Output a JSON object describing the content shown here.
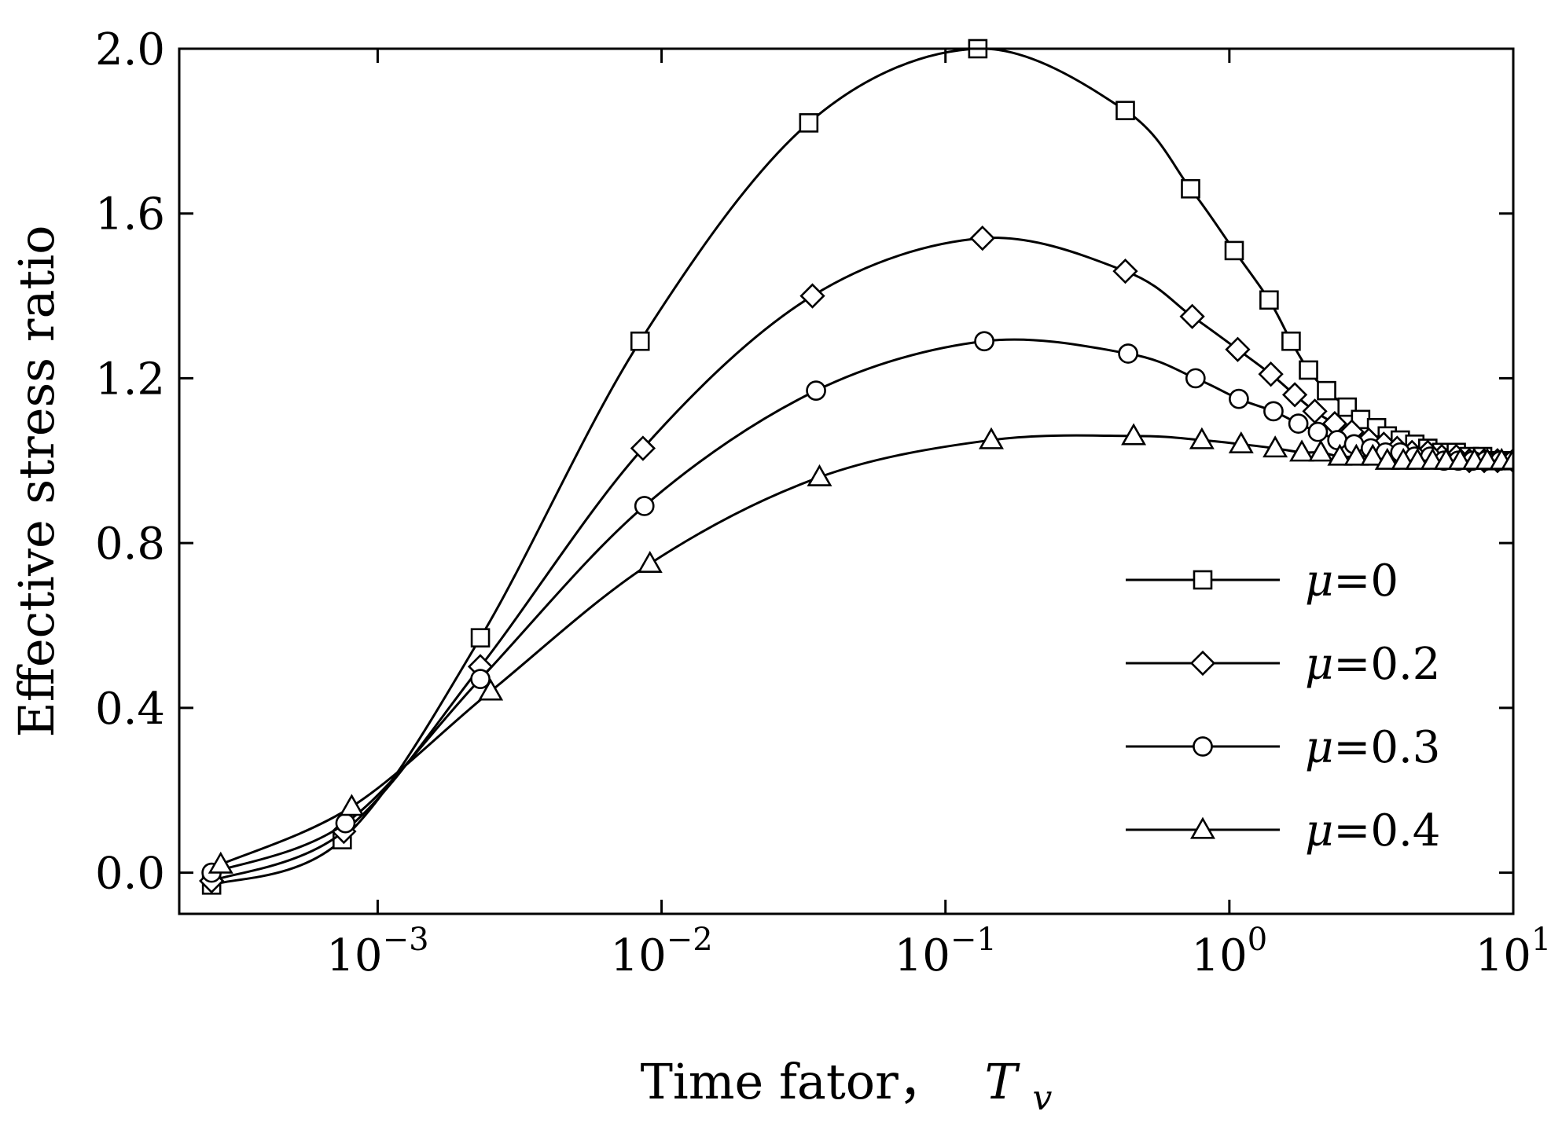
{
  "chart_data": {
    "type": "line",
    "title": "",
    "xlabel": "Time fator，",
    "xlabel_symbol": "T",
    "xlabel_subscript": "v",
    "ylabel": "Effective stress ratio",
    "xscale": "log",
    "xlim": [
      0.0002,
      10
    ],
    "ylim": [
      -0.1,
      2.0
    ],
    "x_ticks": [
      {
        "value": 0.001,
        "base": "10",
        "exp": "−3"
      },
      {
        "value": 0.01,
        "base": "10",
        "exp": "−2"
      },
      {
        "value": 0.1,
        "base": "10",
        "exp": "−1"
      },
      {
        "value": 1,
        "base": "10",
        "exp": "0"
      },
      {
        "value": 10,
        "base": "10",
        "exp": "1"
      }
    ],
    "y_ticks": [
      {
        "value": 0.0,
        "label": "0.0"
      },
      {
        "value": 0.4,
        "label": "0.4"
      },
      {
        "value": 0.8,
        "label": "0.8"
      },
      {
        "value": 1.2,
        "label": "1.2"
      },
      {
        "value": 1.6,
        "label": "1.6"
      },
      {
        "value": 2.0,
        "label": "2.0"
      }
    ],
    "legend_position": "bottom-right",
    "series": [
      {
        "name": "μ=0",
        "symbol": "μ",
        "value_text": "=0",
        "marker": "square",
        "x": [
          0.00026,
          0.00075,
          0.0023,
          0.0084,
          0.033,
          0.13,
          0.43,
          0.73,
          1.04,
          1.38,
          1.65,
          1.9,
          2.2,
          2.6,
          2.9,
          3.3,
          3.6,
          4.0,
          4.5,
          5.0,
          5.6,
          6.3,
          7.0,
          7.8,
          8.7,
          10.0
        ],
        "y": [
          -0.03,
          0.08,
          0.57,
          1.29,
          1.82,
          2.0,
          1.85,
          1.66,
          1.51,
          1.39,
          1.29,
          1.22,
          1.17,
          1.13,
          1.1,
          1.08,
          1.06,
          1.05,
          1.04,
          1.03,
          1.02,
          1.02,
          1.01,
          1.01,
          1.0,
          1.0
        ]
      },
      {
        "name": "μ=0.2",
        "symbol": "μ",
        "value_text": "=0.2",
        "marker": "diamond",
        "x": [
          0.00026,
          0.00076,
          0.0023,
          0.0086,
          0.034,
          0.135,
          0.43,
          0.74,
          1.07,
          1.4,
          1.7,
          2.0,
          2.35,
          2.7,
          3.1,
          3.5,
          3.9,
          4.4,
          5.0,
          5.6,
          6.3,
          7.0,
          7.9,
          8.8,
          10.0
        ],
        "y": [
          -0.02,
          0.1,
          0.5,
          1.03,
          1.4,
          1.54,
          1.46,
          1.35,
          1.27,
          1.21,
          1.16,
          1.12,
          1.09,
          1.07,
          1.05,
          1.04,
          1.03,
          1.02,
          1.02,
          1.01,
          1.01,
          1.0,
          1.0,
          1.0,
          1.0
        ]
      },
      {
        "name": "μ=0.3",
        "symbol": "μ",
        "value_text": "=0.3",
        "marker": "circle",
        "x": [
          0.00026,
          0.00077,
          0.0023,
          0.0087,
          0.035,
          0.137,
          0.44,
          0.76,
          1.08,
          1.43,
          1.75,
          2.05,
          2.4,
          2.75,
          3.15,
          3.55,
          4.0,
          4.5,
          5.1,
          5.7,
          6.4,
          7.2,
          8.0,
          9.0,
          10.0
        ],
        "y": [
          0.0,
          0.12,
          0.47,
          0.89,
          1.17,
          1.29,
          1.26,
          1.2,
          1.15,
          1.12,
          1.09,
          1.07,
          1.05,
          1.04,
          1.03,
          1.02,
          1.02,
          1.01,
          1.01,
          1.0,
          1.0,
          1.0,
          1.0,
          1.0,
          1.0
        ]
      },
      {
        "name": "μ=0.4",
        "symbol": "μ",
        "value_text": "=0.4",
        "marker": "triangle",
        "x": [
          0.00028,
          0.00081,
          0.0025,
          0.0091,
          0.036,
          0.145,
          0.46,
          0.8,
          1.1,
          1.45,
          1.8,
          2.1,
          2.45,
          2.8,
          3.2,
          3.6,
          4.1,
          4.6,
          5.2,
          5.8,
          6.5,
          7.3,
          8.1,
          9.1,
          10.0
        ],
        "y": [
          0.02,
          0.16,
          0.44,
          0.75,
          0.96,
          1.05,
          1.06,
          1.05,
          1.04,
          1.03,
          1.02,
          1.02,
          1.01,
          1.01,
          1.01,
          1.0,
          1.0,
          1.0,
          1.0,
          1.0,
          1.0,
          1.0,
          1.0,
          1.0,
          1.0
        ]
      }
    ]
  }
}
